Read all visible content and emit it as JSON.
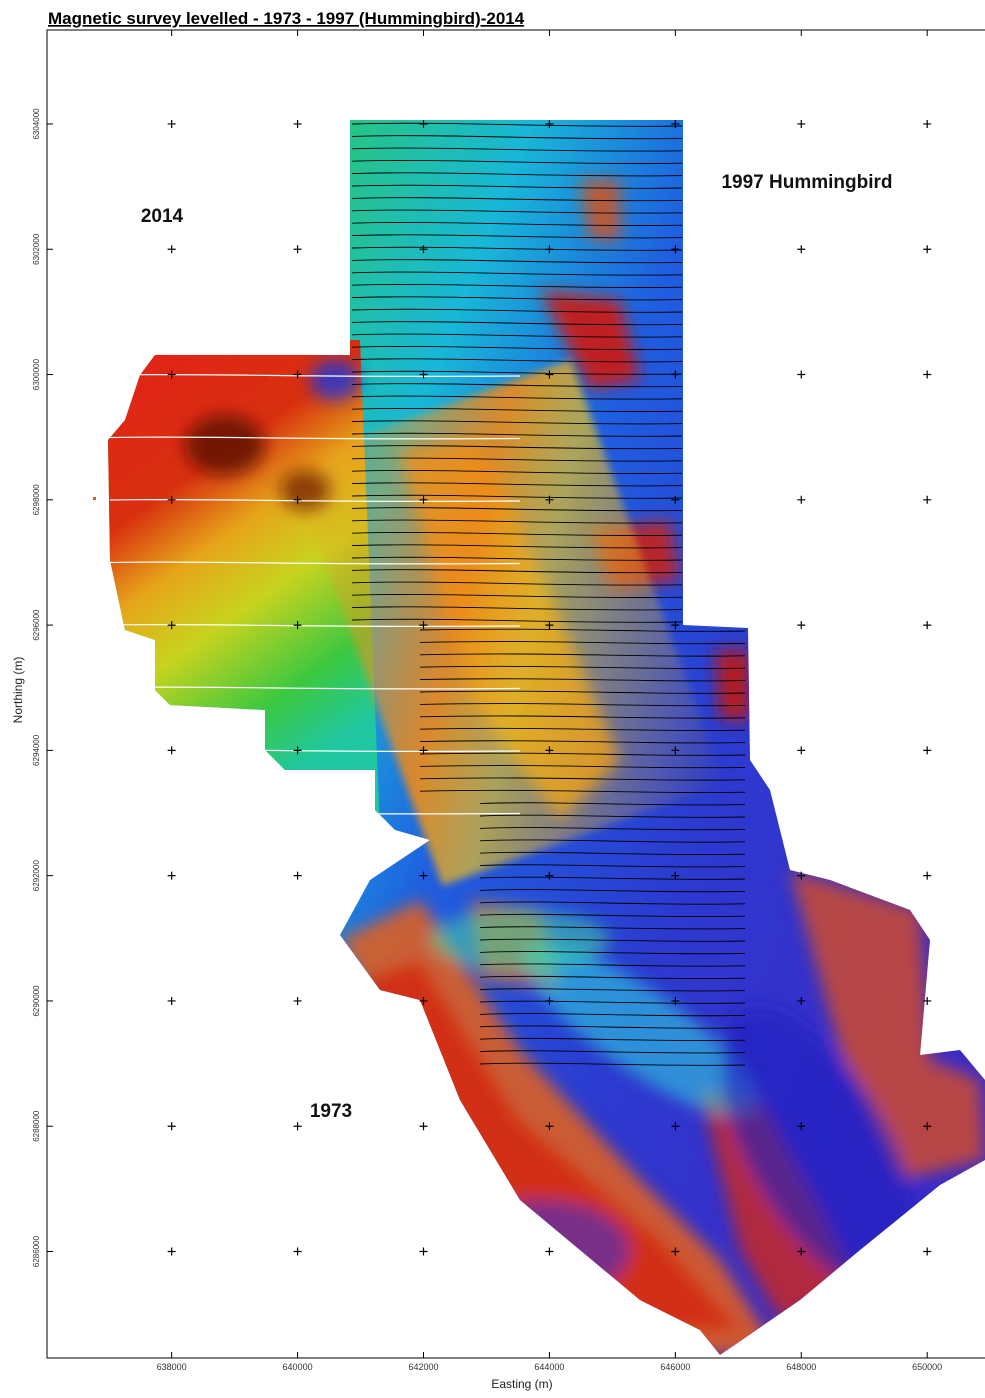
{
  "map": {
    "title": "Magnetic survey levelled - 1973 - 1997 (Hummingbird)-2014",
    "x_label": "Easting (m)",
    "y_label": "Northing (m)",
    "annotations": [
      "2014",
      "1997 Hummingbird",
      "1973"
    ],
    "xlim": [
      636020,
      650950
    ],
    "ylim": [
      6284300,
      6305500
    ],
    "xticks": [
      638000,
      640000,
      642000,
      644000,
      646000,
      648000,
      650000
    ],
    "yticks": [
      6304000,
      6302000,
      6300000,
      6298000,
      6296000,
      6294000,
      6292000,
      6290000,
      6288000,
      6286000
    ]
  }
}
